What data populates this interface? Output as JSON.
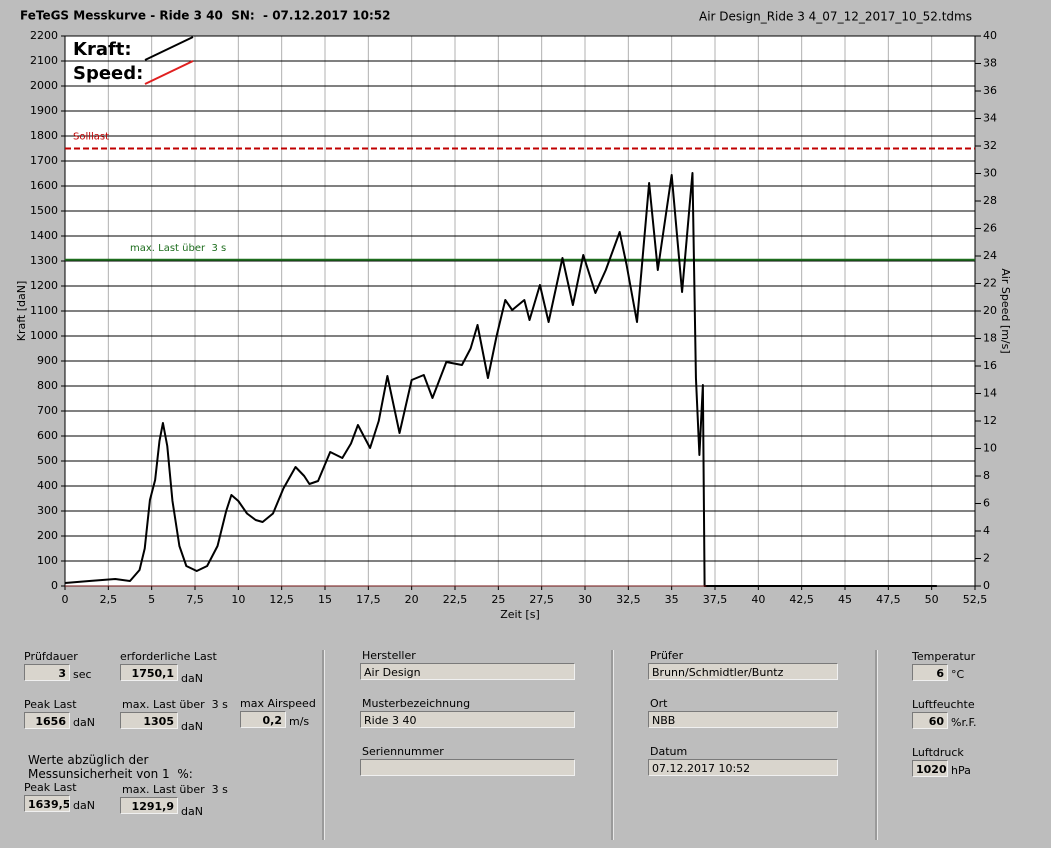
{
  "chart_data": {
    "type": "line",
    "title": "FeTeGS Messkurve - Ride 3 40  SN:  - 07.12.2017 10:52",
    "subtitle": "Air Design_Ride 3 4_07_12_2017_10_52.tdms",
    "xlabel": "Zeit [s]",
    "ylabel": "Kraft [daN]",
    "y2label": "Air Speed [m/s]",
    "xlim": [
      0,
      52.5
    ],
    "xticks": [
      0,
      {
        "value": 2.5,
        "label": "2,5"
      },
      5,
      {
        "value": 7.5,
        "label": "7,5"
      },
      10,
      {
        "value": 12.5,
        "label": "12,5"
      },
      15,
      {
        "value": 17.5,
        "label": "17,5"
      },
      20,
      {
        "value": 22.5,
        "label": "22,5"
      },
      25,
      {
        "value": 27.5,
        "label": "27,5"
      },
      30,
      {
        "value": 32.5,
        "label": "32,5"
      },
      35,
      {
        "value": 37.5,
        "label": "37,5"
      },
      40,
      {
        "value": 42.5,
        "label": "42,5"
      },
      45,
      {
        "value": 47.5,
        "label": "47,5"
      },
      50,
      {
        "value": 52.5,
        "label": "52,5"
      }
    ],
    "ylim": [
      0,
      2200
    ],
    "yticks": [
      0,
      100,
      200,
      300,
      400,
      500,
      600,
      700,
      800,
      900,
      1000,
      1100,
      1200,
      1300,
      1400,
      1500,
      1600,
      1700,
      1800,
      1900,
      2000,
      2100,
      2200
    ],
    "y2lim": [
      0,
      40
    ],
    "y2ticks": [
      0,
      2,
      4,
      6,
      8,
      10,
      12,
      14,
      16,
      18,
      20,
      22,
      24,
      26,
      28,
      30,
      32,
      34,
      36,
      38,
      40
    ],
    "grid": true,
    "legend": "top-left",
    "ref_lines": [
      {
        "value": 1750,
        "label": "Solllast",
        "color": "#c00000",
        "dash": true
      },
      {
        "value": 1305,
        "label": "max. Last über  3 s",
        "color": "#1e6e1e",
        "dash": false
      }
    ],
    "series": [
      {
        "name": "Kraft:",
        "color": "#000000",
        "x": [
          0,
          1.4,
          2.9,
          3.75,
          4.3,
          4.6,
          4.9,
          5.2,
          5.45,
          5.65,
          5.9,
          6.2,
          6.6,
          7.0,
          7.6,
          8.2,
          8.8,
          9.3,
          9.6,
          10.0,
          10.5,
          11.0,
          11.4,
          12.0,
          12.6,
          13.3,
          13.8,
          14.1,
          14.6,
          15.3,
          16.0,
          16.5,
          16.9,
          17.6,
          18.1,
          18.6,
          19.3,
          20.0,
          20.7,
          21.2,
          22.0,
          22.9,
          23.4,
          23.8,
          24.4,
          24.9,
          25.4,
          25.8,
          26.5,
          26.8,
          27.4,
          27.9,
          28.7,
          29.3,
          29.9,
          30.6,
          31.2,
          32.0,
          32.4,
          33.0,
          33.7,
          34.2,
          35.0,
          35.6,
          36.2,
          36.4,
          36.6,
          36.8,
          36.9,
          40,
          45,
          50.3
        ],
        "values": [
          12,
          20,
          28,
          20,
          64,
          150,
          344,
          424,
          580,
          652,
          560,
          340,
          160,
          80,
          60,
          80,
          160,
          300,
          364,
          340,
          290,
          264,
          256,
          290,
          390,
          476,
          440,
          408,
          420,
          536,
          512,
          570,
          644,
          552,
          660,
          840,
          612,
          824,
          844,
          752,
          896,
          884,
          950,
          1044,
          832,
          1000,
          1144,
          1104,
          1144,
          1064,
          1204,
          1056,
          1312,
          1124,
          1324,
          1172,
          1264,
          1416,
          1284,
          1056,
          1612,
          1264,
          1644,
          1176,
          1652,
          832,
          524,
          804,
          0,
          0,
          0,
          0
        ]
      },
      {
        "name": "Speed:",
        "color": "#e02020",
        "axis": "y2",
        "x": [
          0,
          37
        ],
        "values": [
          0,
          0
        ]
      }
    ]
  },
  "form": {
    "note": [
      "Werte abzüglich der",
      "Messunsicherheit von 1  %:"
    ],
    "fields": [
      {
        "label": "Prüfdauer",
        "value": "3",
        "unit": "sec"
      },
      {
        "label": "erforderliche Last",
        "value": "1750,1",
        "unit": "daN"
      },
      {
        "label": "Peak Last",
        "value": "1656",
        "unit": "daN"
      },
      {
        "label": "max. Last über  3 s",
        "value": "1305",
        "unit": "daN"
      },
      {
        "label": "max Airspeed",
        "value": "0,2",
        "unit": "m/s"
      },
      {
        "label": "Peak Last",
        "value": "1639,5",
        "unit": "daN"
      },
      {
        "label": "max. Last über  3 s",
        "value": "1291,9",
        "unit": "daN"
      },
      {
        "label": "Hersteller",
        "value": "Air Design"
      },
      {
        "label": "Musterbezeichnung",
        "value": "Ride 3 40"
      },
      {
        "label": "Seriennummer"
      },
      {
        "label": "Prüfer",
        "value": "Brunn/Schmidtler/Buntz"
      },
      {
        "label": "Ort",
        "value": "NBB"
      },
      {
        "label": "Datum",
        "value": "07.12.2017 10:52"
      },
      {
        "label": "Temperatur",
        "value": "6",
        "unit": "°C"
      },
      {
        "label": "Luftfeuchte",
        "value": "60",
        "unit": "%r.F."
      },
      {
        "label": "Luftdruck",
        "value": "1020",
        "unit": "hPa"
      }
    ]
  }
}
